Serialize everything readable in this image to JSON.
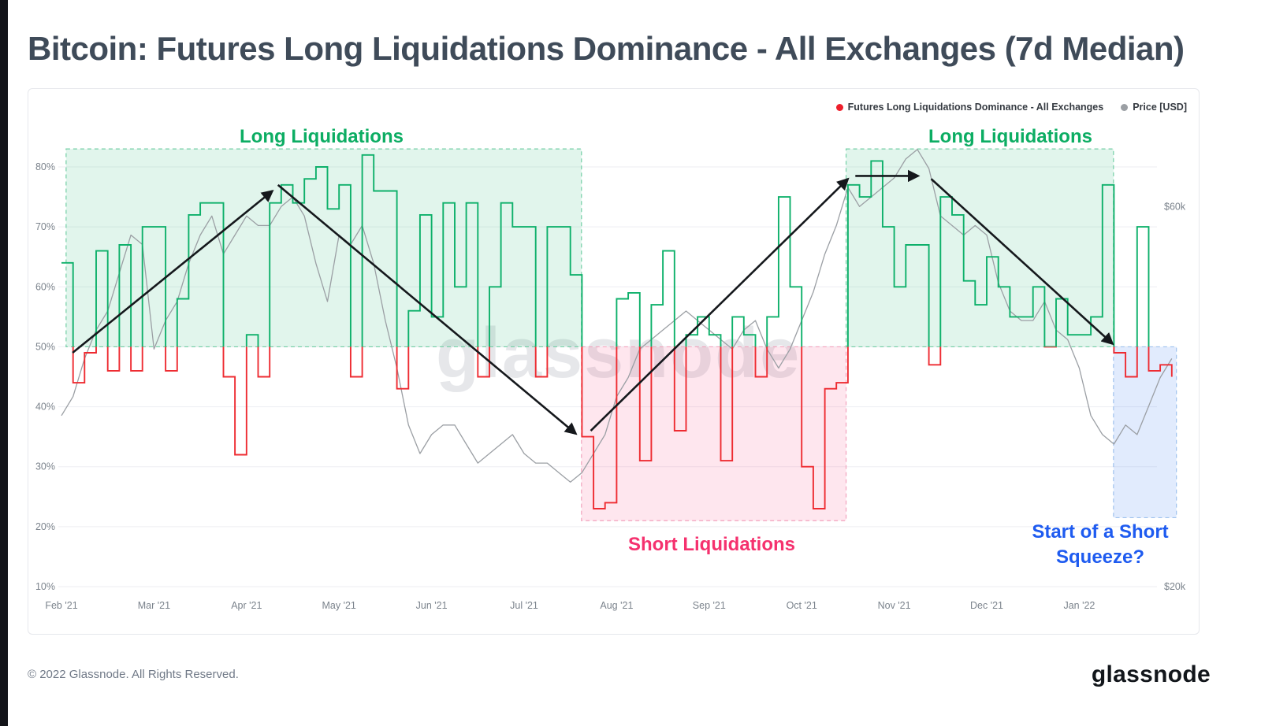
{
  "page": {
    "title": "Bitcoin: Futures Long Liquidations Dominance - All Exchanges (7d Median)",
    "watermark": "glassnode",
    "footer_copyright": "© 2022 Glassnode. All Rights Reserved.",
    "footer_logo": "glassnode"
  },
  "legend": {
    "series1": {
      "label": "Futures Long Liquidations Dominance - All Exchanges",
      "color": "#ee1f2b"
    },
    "series2": {
      "label": "Price [USD]",
      "color": "#9b9fa4"
    }
  },
  "annotations": {
    "long_liquidations_left": {
      "text": "Long Liquidations",
      "color": "#0cad63"
    },
    "long_liquidations_right": {
      "text": "Long Liquidations",
      "color": "#0cad63"
    },
    "short_liquidations": {
      "text": "Short Liquidations",
      "color": "#f5316e"
    },
    "short_squeeze": {
      "text": "Start of a Short Squeeze?",
      "color": "#1e5bf0"
    }
  },
  "chart_data": {
    "type": "line",
    "title": "Bitcoin: Futures Long Liquidations Dominance - All Exchanges (7d Median)",
    "x_ticks": [
      "Feb '21",
      "Mar '21",
      "Apr '21",
      "May '21",
      "Jun '21",
      "Jul '21",
      "Aug '21",
      "Sep '21",
      "Oct '21",
      "Nov '21",
      "Dec '21",
      "Jan '22"
    ],
    "y_left": {
      "ticks_pct": [
        80,
        70,
        60,
        50,
        40,
        30,
        20,
        10
      ],
      "unit": "%",
      "range_pct": [
        10,
        84
      ]
    },
    "y_right": {
      "ticks": [
        {
          "label": "$60k",
          "usd_k": 60
        },
        {
          "label": "$20k",
          "usd_k": 20
        }
      ],
      "usd20k_pct": 10,
      "usd60k_pct": 73.4
    },
    "grid": "horizontal",
    "legend_position": "top-right",
    "arrow_color": "#15181c",
    "series": [
      {
        "name": "Futures Long Liquidations Dominance - All Exchanges",
        "axis": "left",
        "unit": "%",
        "style": "step",
        "color_above_50": "#0db06a",
        "color_below_50": "#ee2b31",
        "x_start_month": 0,
        "x_step_months": 0.125,
        "values_pct": [
          64,
          44,
          49,
          66,
          46,
          67,
          46,
          70,
          70,
          46,
          58,
          72,
          74,
          74,
          45,
          32,
          52,
          45,
          74,
          77,
          74,
          78,
          80,
          73,
          77,
          45,
          82,
          76,
          76,
          43,
          56,
          72,
          55,
          74,
          60,
          74,
          45,
          60,
          74,
          70,
          70,
          45,
          70,
          70,
          62,
          35,
          23,
          24,
          58,
          59,
          31,
          57,
          66,
          36,
          52,
          55,
          52,
          31,
          55,
          52,
          45,
          55,
          75,
          60,
          30,
          23,
          43,
          44,
          77,
          75,
          81,
          70,
          60,
          67,
          67,
          47,
          75,
          72,
          61,
          57,
          65,
          60,
          55,
          55,
          60,
          50,
          58,
          52,
          52,
          55,
          77,
          49,
          45,
          70,
          46,
          47,
          45
        ]
      },
      {
        "name": "Price [USD]",
        "axis": "right",
        "unit": "USD",
        "style": "line",
        "color": "#9b9fa4",
        "x_start_month": 0,
        "x_step_months": 0.125,
        "values_usd_k": [
          38,
          40,
          44,
          47,
          49,
          53,
          57,
          56,
          45,
          48,
          50,
          54,
          57,
          59,
          55,
          57,
          59,
          58,
          58,
          60,
          61,
          59,
          54,
          50,
          57,
          56,
          58,
          54,
          48,
          43,
          37,
          34,
          36,
          37,
          37,
          35,
          33,
          34,
          35,
          36,
          34,
          33,
          33,
          32,
          31,
          32,
          34,
          36,
          40,
          42,
          45,
          46,
          47,
          48,
          49,
          48,
          47,
          46,
          45,
          47,
          48,
          45,
          43,
          45,
          48,
          51,
          55,
          58,
          62,
          60,
          61,
          62,
          63,
          65,
          66,
          64,
          59,
          58,
          57,
          58,
          57,
          52,
          49,
          48,
          48,
          50,
          47,
          46,
          43,
          38,
          36,
          35,
          37,
          36,
          39,
          42,
          44
        ]
      }
    ],
    "regions": [
      {
        "name": "long-liquidations-1",
        "t": [
          0.05,
          5.62
        ],
        "pct": [
          50,
          83
        ],
        "fill": "rgba(23,178,106,0.13)",
        "stroke": "#74cfa6"
      },
      {
        "name": "short-liquidations",
        "t": [
          5.62,
          8.48
        ],
        "pct": [
          21,
          50
        ],
        "fill": "rgba(244,63,122,0.13)",
        "stroke": "#f2a3bd"
      },
      {
        "name": "long-liquidations-2",
        "t": [
          8.48,
          11.37
        ],
        "pct": [
          50,
          83
        ],
        "fill": "rgba(23,178,106,0.13)",
        "stroke": "#74cfa6"
      },
      {
        "name": "short-squeeze",
        "t": [
          11.37,
          12.05
        ],
        "pct": [
          21.5,
          50
        ],
        "fill": "rgba(66,133,244,0.16)",
        "stroke": "#9fc2ee"
      }
    ],
    "arrows": [
      {
        "from": [
          0.12,
          49
        ],
        "to": [
          2.28,
          76
        ]
      },
      {
        "from": [
          2.34,
          77
        ],
        "to": [
          5.56,
          35.5
        ]
      },
      {
        "from": [
          5.72,
          36
        ],
        "to": [
          8.5,
          78
        ]
      },
      {
        "from": [
          8.58,
          78.5
        ],
        "to": [
          9.26,
          78.5
        ]
      },
      {
        "from": [
          9.4,
          78
        ],
        "to": [
          11.36,
          50.5
        ]
      }
    ]
  }
}
